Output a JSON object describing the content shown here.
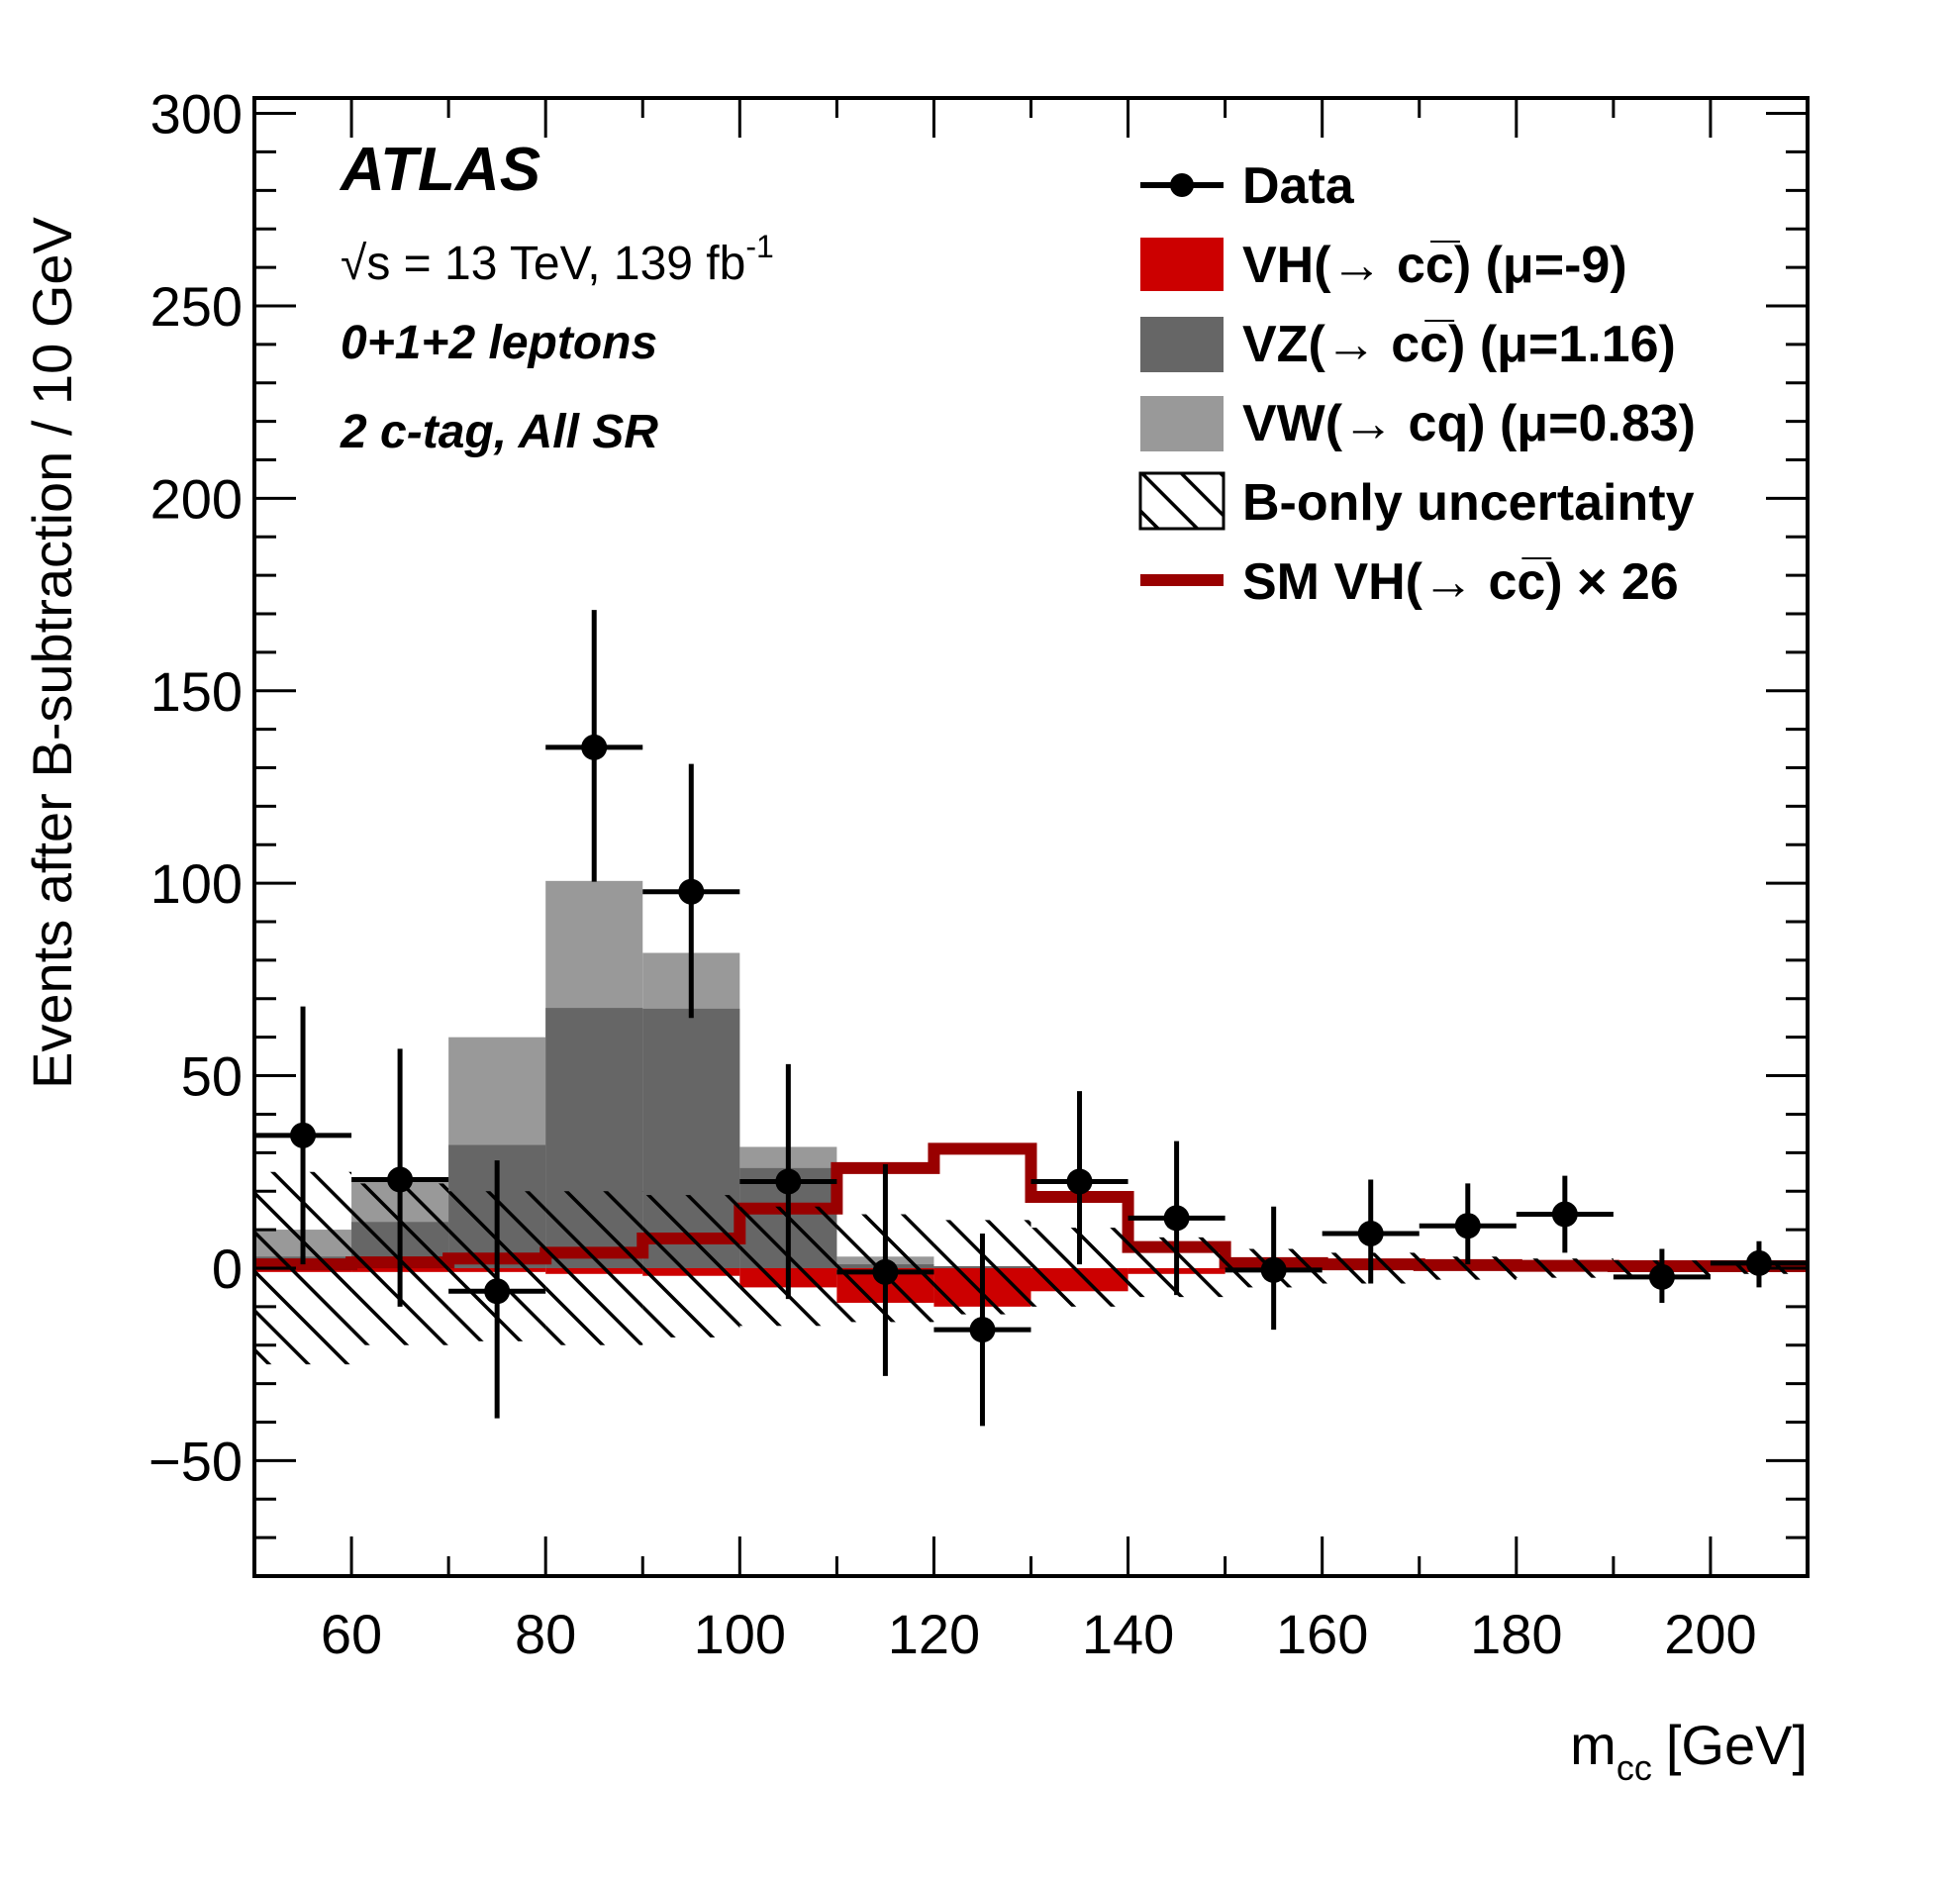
{
  "chart_data": {
    "type": "bar",
    "subtype": "stacked-histogram-with-data-points",
    "title": "",
    "xlabel": "m_cc [GeV]",
    "xlabel_main": "m",
    "xlabel_sub": "cc",
    "xlabel_unit": "[GeV]",
    "ylabel": "Events after B-subtraction / 10 GeV",
    "xlim": [
      50,
      210
    ],
    "ylim": [
      -80,
      304
    ],
    "x_ticks": [
      60,
      80,
      100,
      120,
      140,
      160,
      180,
      200
    ],
    "x_tick_labels": [
      "60",
      "80",
      "100",
      "120",
      "140",
      "160",
      "180",
      "200"
    ],
    "y_ticks": [
      -50,
      0,
      50,
      100,
      150,
      200,
      250,
      300
    ],
    "y_tick_labels": [
      "−50",
      "0",
      "50",
      "100",
      "150",
      "200",
      "250",
      "300"
    ],
    "grid": false,
    "legend_position": "top-right",
    "bin_edges": [
      50,
      60,
      70,
      80,
      90,
      100,
      110,
      120,
      130,
      140,
      150,
      160,
      170,
      180,
      190,
      200,
      210
    ],
    "annotations": {
      "experiment": "ATLAS",
      "energy_prefix": "√s = 13 TeV, 139 fb",
      "energy_sup": "-1",
      "channel": "0+1+2 leptons",
      "region": "2 c-tag, All SR"
    },
    "series": [
      {
        "name": "VW(→ cq) (μ=0.83)",
        "kind": "stacked-fill",
        "color": "#999999",
        "values": [
          7,
          11,
          28,
          33,
          14.5,
          5.5,
          2,
          0,
          0,
          0,
          0,
          0,
          0,
          0,
          0,
          0
        ]
      },
      {
        "name": "VZ(→ cc̅) (μ=1.16)",
        "kind": "stacked-fill",
        "color": "#666666",
        "values": [
          3,
          12,
          32,
          67.6,
          67.4,
          26,
          1,
          0.5,
          0,
          0,
          0,
          0,
          0,
          0,
          0,
          0
        ]
      },
      {
        "name": "VH(→ cc̅) (μ=-9)",
        "kind": "negative-fill",
        "color": "#cc0000",
        "values": [
          -1,
          -1,
          -1,
          -1.5,
          -2,
          -5,
          -9,
          -10,
          -6,
          -1.5,
          -0.5,
          -0.5,
          -0.3,
          -0.3,
          -0.2,
          -0.2
        ]
      },
      {
        "name": "B-only uncertainty",
        "kind": "hatched-band",
        "color": "#000000",
        "up": [
          25,
          22,
          20,
          20,
          19,
          16,
          14,
          12.5,
          10.5,
          8,
          5,
          4,
          3,
          2.5,
          2,
          1.5
        ],
        "down": [
          -25,
          -20,
          -19,
          -20,
          -18,
          -15,
          -14,
          -12,
          -10,
          -7.5,
          -5,
          -4,
          -3,
          -2.5,
          -2,
          -1.5
        ]
      },
      {
        "name": "SM VH(→ cc̅) × 26",
        "kind": "step-line",
        "color": "#990000",
        "values": [
          1,
          1.5,
          2.5,
          4,
          7.7,
          15.5,
          26,
          31,
          18.5,
          5.5,
          1.3,
          1,
          0.8,
          0.6,
          0.5,
          0.5
        ]
      },
      {
        "name": "Data",
        "kind": "points",
        "color": "#000000",
        "x": [
          55,
          65,
          75,
          85,
          95,
          105,
          115,
          125,
          135,
          145,
          155,
          165,
          175,
          185,
          195,
          205
        ],
        "values": [
          34.5,
          23,
          -6,
          135.3,
          97.8,
          22.5,
          -1,
          -16,
          22.5,
          13,
          -0.5,
          9,
          11,
          14,
          -2.3,
          1.3
        ],
        "err_up": [
          68,
          57,
          28,
          171,
          131,
          53,
          27,
          9,
          46,
          33,
          16,
          23,
          22,
          24,
          5,
          7
        ],
        "err_down": [
          1,
          -10,
          -39,
          100.4,
          65,
          -8,
          -28,
          -41,
          1,
          -7,
          -16,
          -4,
          1,
          4,
          -9,
          -5
        ]
      }
    ],
    "legend": [
      {
        "key": "data",
        "label": "Data",
        "color": "#000000"
      },
      {
        "key": "vh",
        "label": "VH(→ cc̅) (μ=-9)",
        "color": "#cc0000"
      },
      {
        "key": "vz",
        "label": "VZ(→ cc̅) (μ=1.16)",
        "color": "#666666"
      },
      {
        "key": "vw",
        "label": "VW(→ cq) (μ=0.83)",
        "color": "#999999"
      },
      {
        "key": "unc",
        "label": "B-only uncertainty",
        "color": "#000000"
      },
      {
        "key": "sm",
        "label": "SM VH(→ cc̅) × 26",
        "color": "#990000"
      }
    ]
  }
}
